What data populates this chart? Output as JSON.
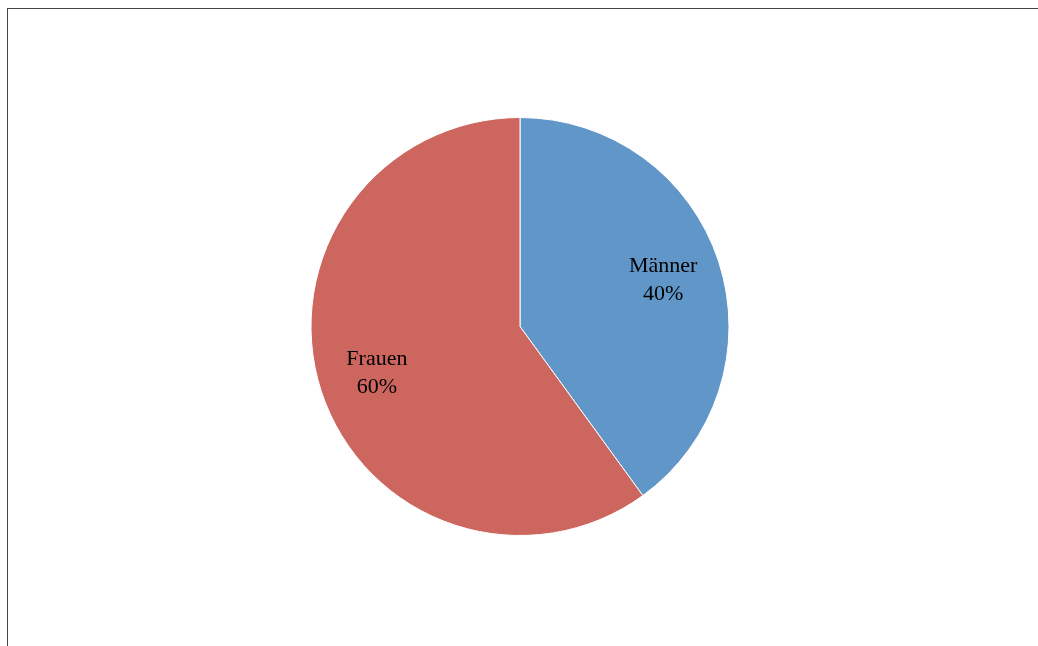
{
  "chart_data": {
    "type": "pie",
    "categories": [
      "Männer",
      "Frauen"
    ],
    "values": [
      40,
      60
    ],
    "colors": [
      "#6196c8",
      "#cc665e"
    ],
    "value_labels": [
      "40%",
      "60%"
    ]
  }
}
